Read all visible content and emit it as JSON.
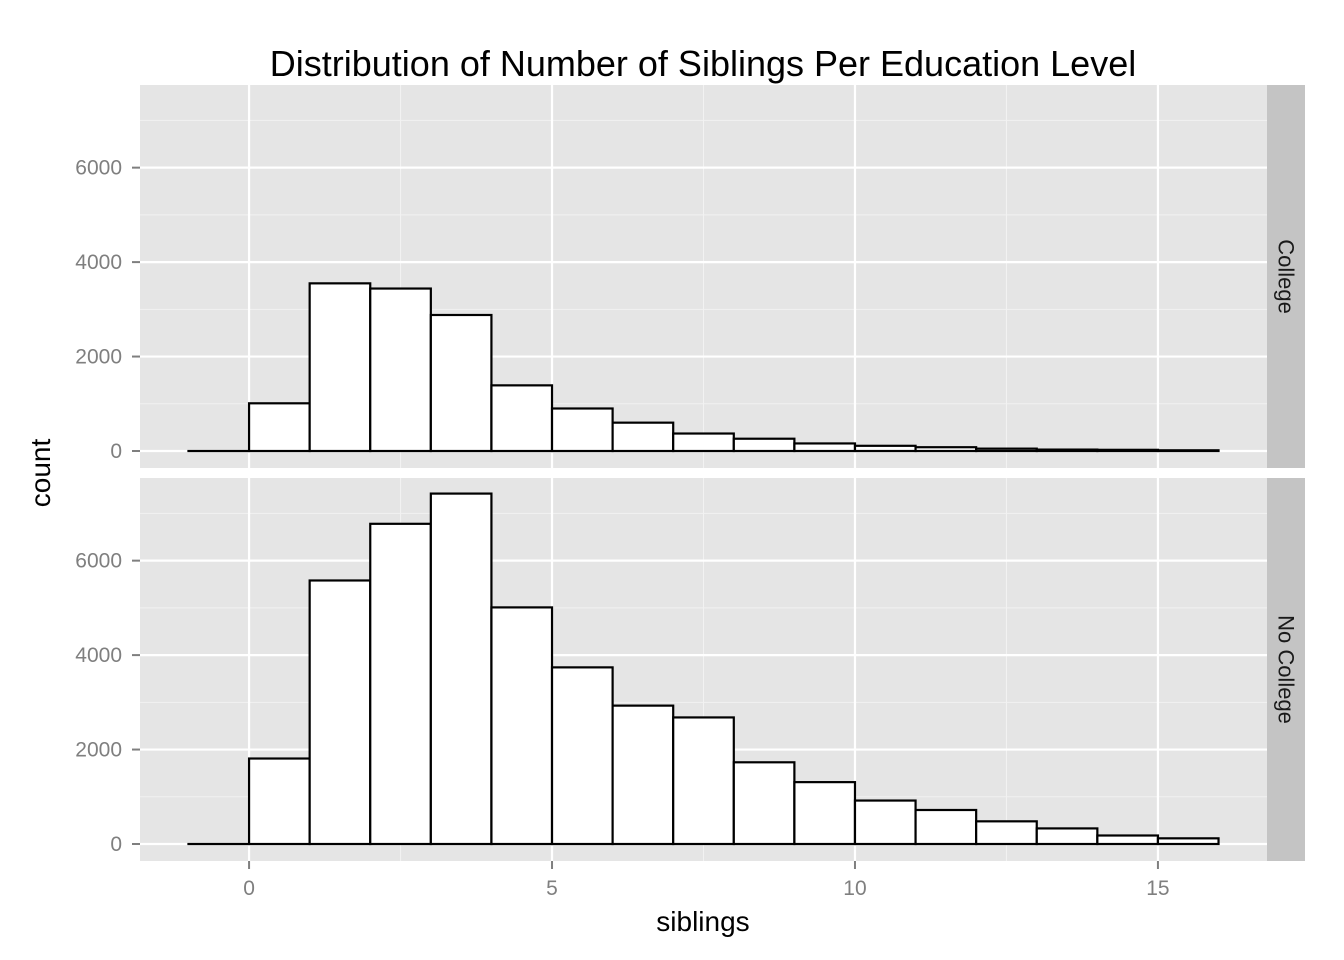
{
  "chart_data": {
    "type": "bar",
    "title": "Distribution of Number of Siblings Per Education Level",
    "xlabel": "siblings",
    "ylabel": "count",
    "xlim": [
      -1.8,
      16.8
    ],
    "ylim": [
      -360,
      7750
    ],
    "x_ticks": [
      0,
      5,
      10,
      15
    ],
    "y_ticks": [
      0,
      2000,
      4000,
      6000
    ],
    "bin_edges": [
      -1,
      0,
      1,
      2,
      3,
      4,
      5,
      6,
      7,
      8,
      9,
      10,
      11,
      12,
      13,
      14,
      15,
      16
    ],
    "grid": true,
    "bar_fill": "#ffffff",
    "bar_stroke": "#000000",
    "panel_background": "#e5e5e5",
    "strip_background": "#c4c4c4",
    "series": [
      {
        "name": "College",
        "values": [
          0,
          1010,
          3550,
          3440,
          2880,
          1390,
          900,
          600,
          370,
          260,
          160,
          110,
          80,
          50,
          30,
          25,
          15
        ]
      },
      {
        "name": "No College",
        "values": [
          0,
          1810,
          5580,
          6780,
          7420,
          5010,
          3740,
          2930,
          2680,
          1730,
          1310,
          920,
          720,
          480,
          330,
          180,
          120
        ]
      }
    ]
  }
}
